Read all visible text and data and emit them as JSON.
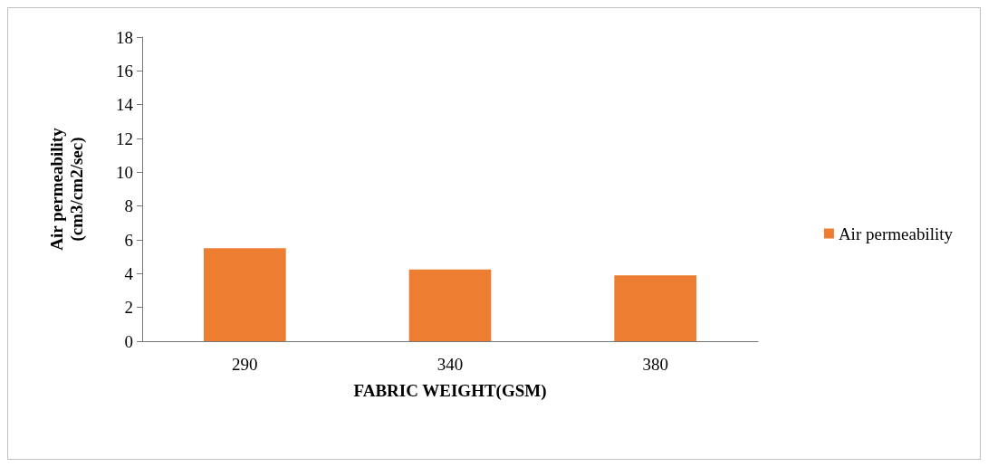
{
  "chart_data": {
    "type": "bar",
    "categories": [
      "290",
      "340",
      "380"
    ],
    "series": [
      {
        "name": "Air permeability",
        "color": "#ed7d31",
        "values": [
          5.5,
          4.25,
          3.9
        ]
      }
    ],
    "xlabel": "FABRIC WEIGHT(GSM)",
    "ylabel": "Air permeability\n(cm3/cm2/sec)",
    "ylim": [
      0,
      18
    ],
    "yticks": [
      0,
      2,
      4,
      6,
      8,
      10,
      12,
      14,
      16,
      18
    ],
    "grid": false,
    "legend": "right"
  }
}
